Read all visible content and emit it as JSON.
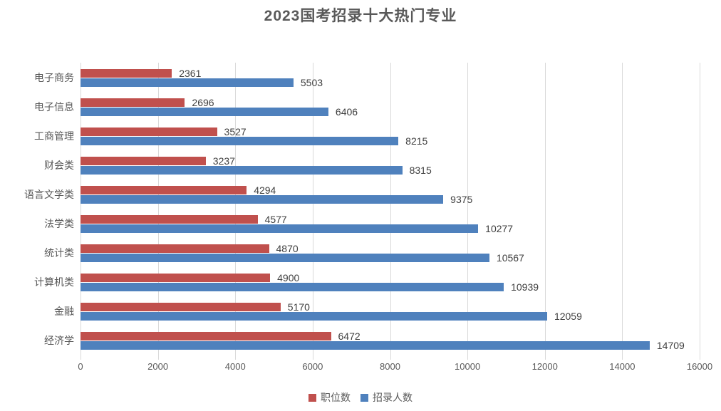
{
  "chart_data": {
    "type": "bar",
    "orientation": "horizontal",
    "title": "2023国考招录十大热门专业",
    "categories": [
      "电子商务",
      "电子信息",
      "工商管理",
      "财会类",
      "语言文学类",
      "法学类",
      "统计类",
      "计算机类",
      "金融",
      "经济学"
    ],
    "series": [
      {
        "name": "职位数",
        "color": "#c0504d",
        "values": [
          2361,
          2696,
          3527,
          3237,
          4294,
          4577,
          4870,
          4900,
          5170,
          6472
        ]
      },
      {
        "name": "招录人数",
        "color": "#4f81bd",
        "values": [
          5503,
          6406,
          8215,
          8315,
          9375,
          10277,
          10567,
          10939,
          12059,
          14709
        ]
      }
    ],
    "xlim": [
      0,
      16000
    ],
    "x_ticks": [
      0,
      2000,
      4000,
      6000,
      8000,
      10000,
      12000,
      14000,
      16000
    ],
    "grid": "vertical",
    "legend_position": "bottom",
    "data_labels": true
  },
  "colors": {
    "background": "#ffffff",
    "gridline": "#d9d9d9",
    "title_text": "#595959",
    "axis_text": "#595959",
    "value_text": "#404040",
    "series_positions": "#c0504d",
    "series_recruits": "#4f81bd"
  }
}
